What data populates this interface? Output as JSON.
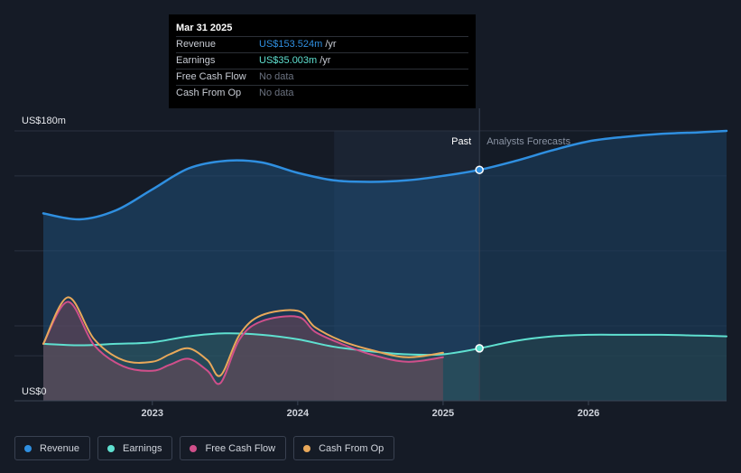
{
  "tooltip": {
    "date": "Mar 31 2025",
    "rows": [
      {
        "label": "Revenue",
        "value": "US$153.524m",
        "unit": "/yr",
        "color": "#2f8fe0"
      },
      {
        "label": "Earnings",
        "value": "US$35.003m",
        "unit": "/yr",
        "color": "#5fe0d0"
      },
      {
        "label": "Free Cash Flow",
        "value": "No data",
        "unit": ""
      },
      {
        "label": "Cash From Op",
        "value": "No data",
        "unit": ""
      }
    ]
  },
  "legend": [
    {
      "label": "Revenue",
      "color": "#2f8fe0"
    },
    {
      "label": "Earnings",
      "color": "#5fe0d0"
    },
    {
      "label": "Free Cash Flow",
      "color": "#d04f8a"
    },
    {
      "label": "Cash From Op",
      "color": "#e8a85a"
    }
  ],
  "chart_data": {
    "type": "line",
    "title": "",
    "xlabel": "",
    "ylabel": "",
    "ylim": [
      0,
      180
    ],
    "xlim": [
      2022.25,
      2026.95
    ],
    "y_tick_labels": [
      {
        "value": 180,
        "label": "US$180m"
      },
      {
        "value": 0,
        "label": "US$0"
      }
    ],
    "x_ticks": [
      {
        "value": 2023.0,
        "label": "2023"
      },
      {
        "value": 2024.0,
        "label": "2024"
      },
      {
        "value": 2025.0,
        "label": "2025"
      },
      {
        "value": 2026.0,
        "label": "2026"
      }
    ],
    "gridlines": [
      30,
      50,
      100,
      150,
      180
    ],
    "divider_x": 2025.25,
    "shaded_start_x": 2024.25,
    "past_label": "Past",
    "forecast_label": "Analysts Forecasts",
    "series": [
      {
        "name": "Revenue",
        "color": "#2f8fe0",
        "stroke_width": 2.5,
        "fill": true,
        "x": [
          2022.25,
          2022.5,
          2022.75,
          2023.0,
          2023.25,
          2023.5,
          2023.75,
          2024.0,
          2024.25,
          2024.5,
          2024.75,
          2025.0,
          2025.25,
          2025.5,
          2025.75,
          2026.0,
          2026.25,
          2026.5,
          2026.75,
          2026.95
        ],
        "values": [
          125,
          121,
          127,
          141,
          155,
          160,
          159,
          152,
          147,
          146,
          147,
          150,
          154,
          160,
          167,
          173,
          176,
          178,
          179,
          180
        ]
      },
      {
        "name": "Earnings",
        "color": "#5fe0d0",
        "stroke_width": 2,
        "fill": true,
        "x": [
          2022.25,
          2022.5,
          2022.75,
          2023.0,
          2023.25,
          2023.5,
          2023.75,
          2024.0,
          2024.25,
          2024.5,
          2024.75,
          2025.0,
          2025.25,
          2025.5,
          2025.75,
          2026.0,
          2026.25,
          2026.5,
          2026.75,
          2026.95
        ],
        "values": [
          38,
          37,
          38,
          39,
          43,
          45,
          44,
          41,
          36,
          33,
          31,
          31,
          35,
          40,
          43,
          44,
          44,
          44,
          43.5,
          43
        ]
      },
      {
        "name": "Free Cash Flow",
        "color": "#d04f8a",
        "stroke_width": 2,
        "fill": true,
        "x": [
          2022.25,
          2022.42,
          2022.6,
          2022.8,
          2023.0,
          2023.12,
          2023.25,
          2023.38,
          2023.47,
          2023.6,
          2023.75,
          2024.0,
          2024.12,
          2024.3,
          2024.5,
          2024.75,
          2025.0
        ],
        "values": [
          38,
          66,
          37,
          23,
          20,
          24,
          28,
          20,
          12,
          41,
          53,
          56,
          46,
          38,
          31,
          26,
          29
        ]
      },
      {
        "name": "Cash From Op",
        "color": "#e8a85a",
        "stroke_width": 2,
        "fill": false,
        "x": [
          2022.25,
          2022.42,
          2022.6,
          2022.8,
          2023.0,
          2023.12,
          2023.25,
          2023.38,
          2023.47,
          2023.6,
          2023.75,
          2024.0,
          2024.12,
          2024.3,
          2024.5,
          2024.75,
          2025.0
        ],
        "values": [
          38,
          69,
          41,
          27,
          26,
          31,
          35,
          27,
          17,
          44,
          57,
          60,
          49,
          40,
          34,
          29,
          32
        ]
      }
    ],
    "markers": [
      {
        "series": "Revenue",
        "x": 2025.25,
        "value": 154
      },
      {
        "series": "Earnings",
        "x": 2025.25,
        "value": 35
      }
    ]
  }
}
